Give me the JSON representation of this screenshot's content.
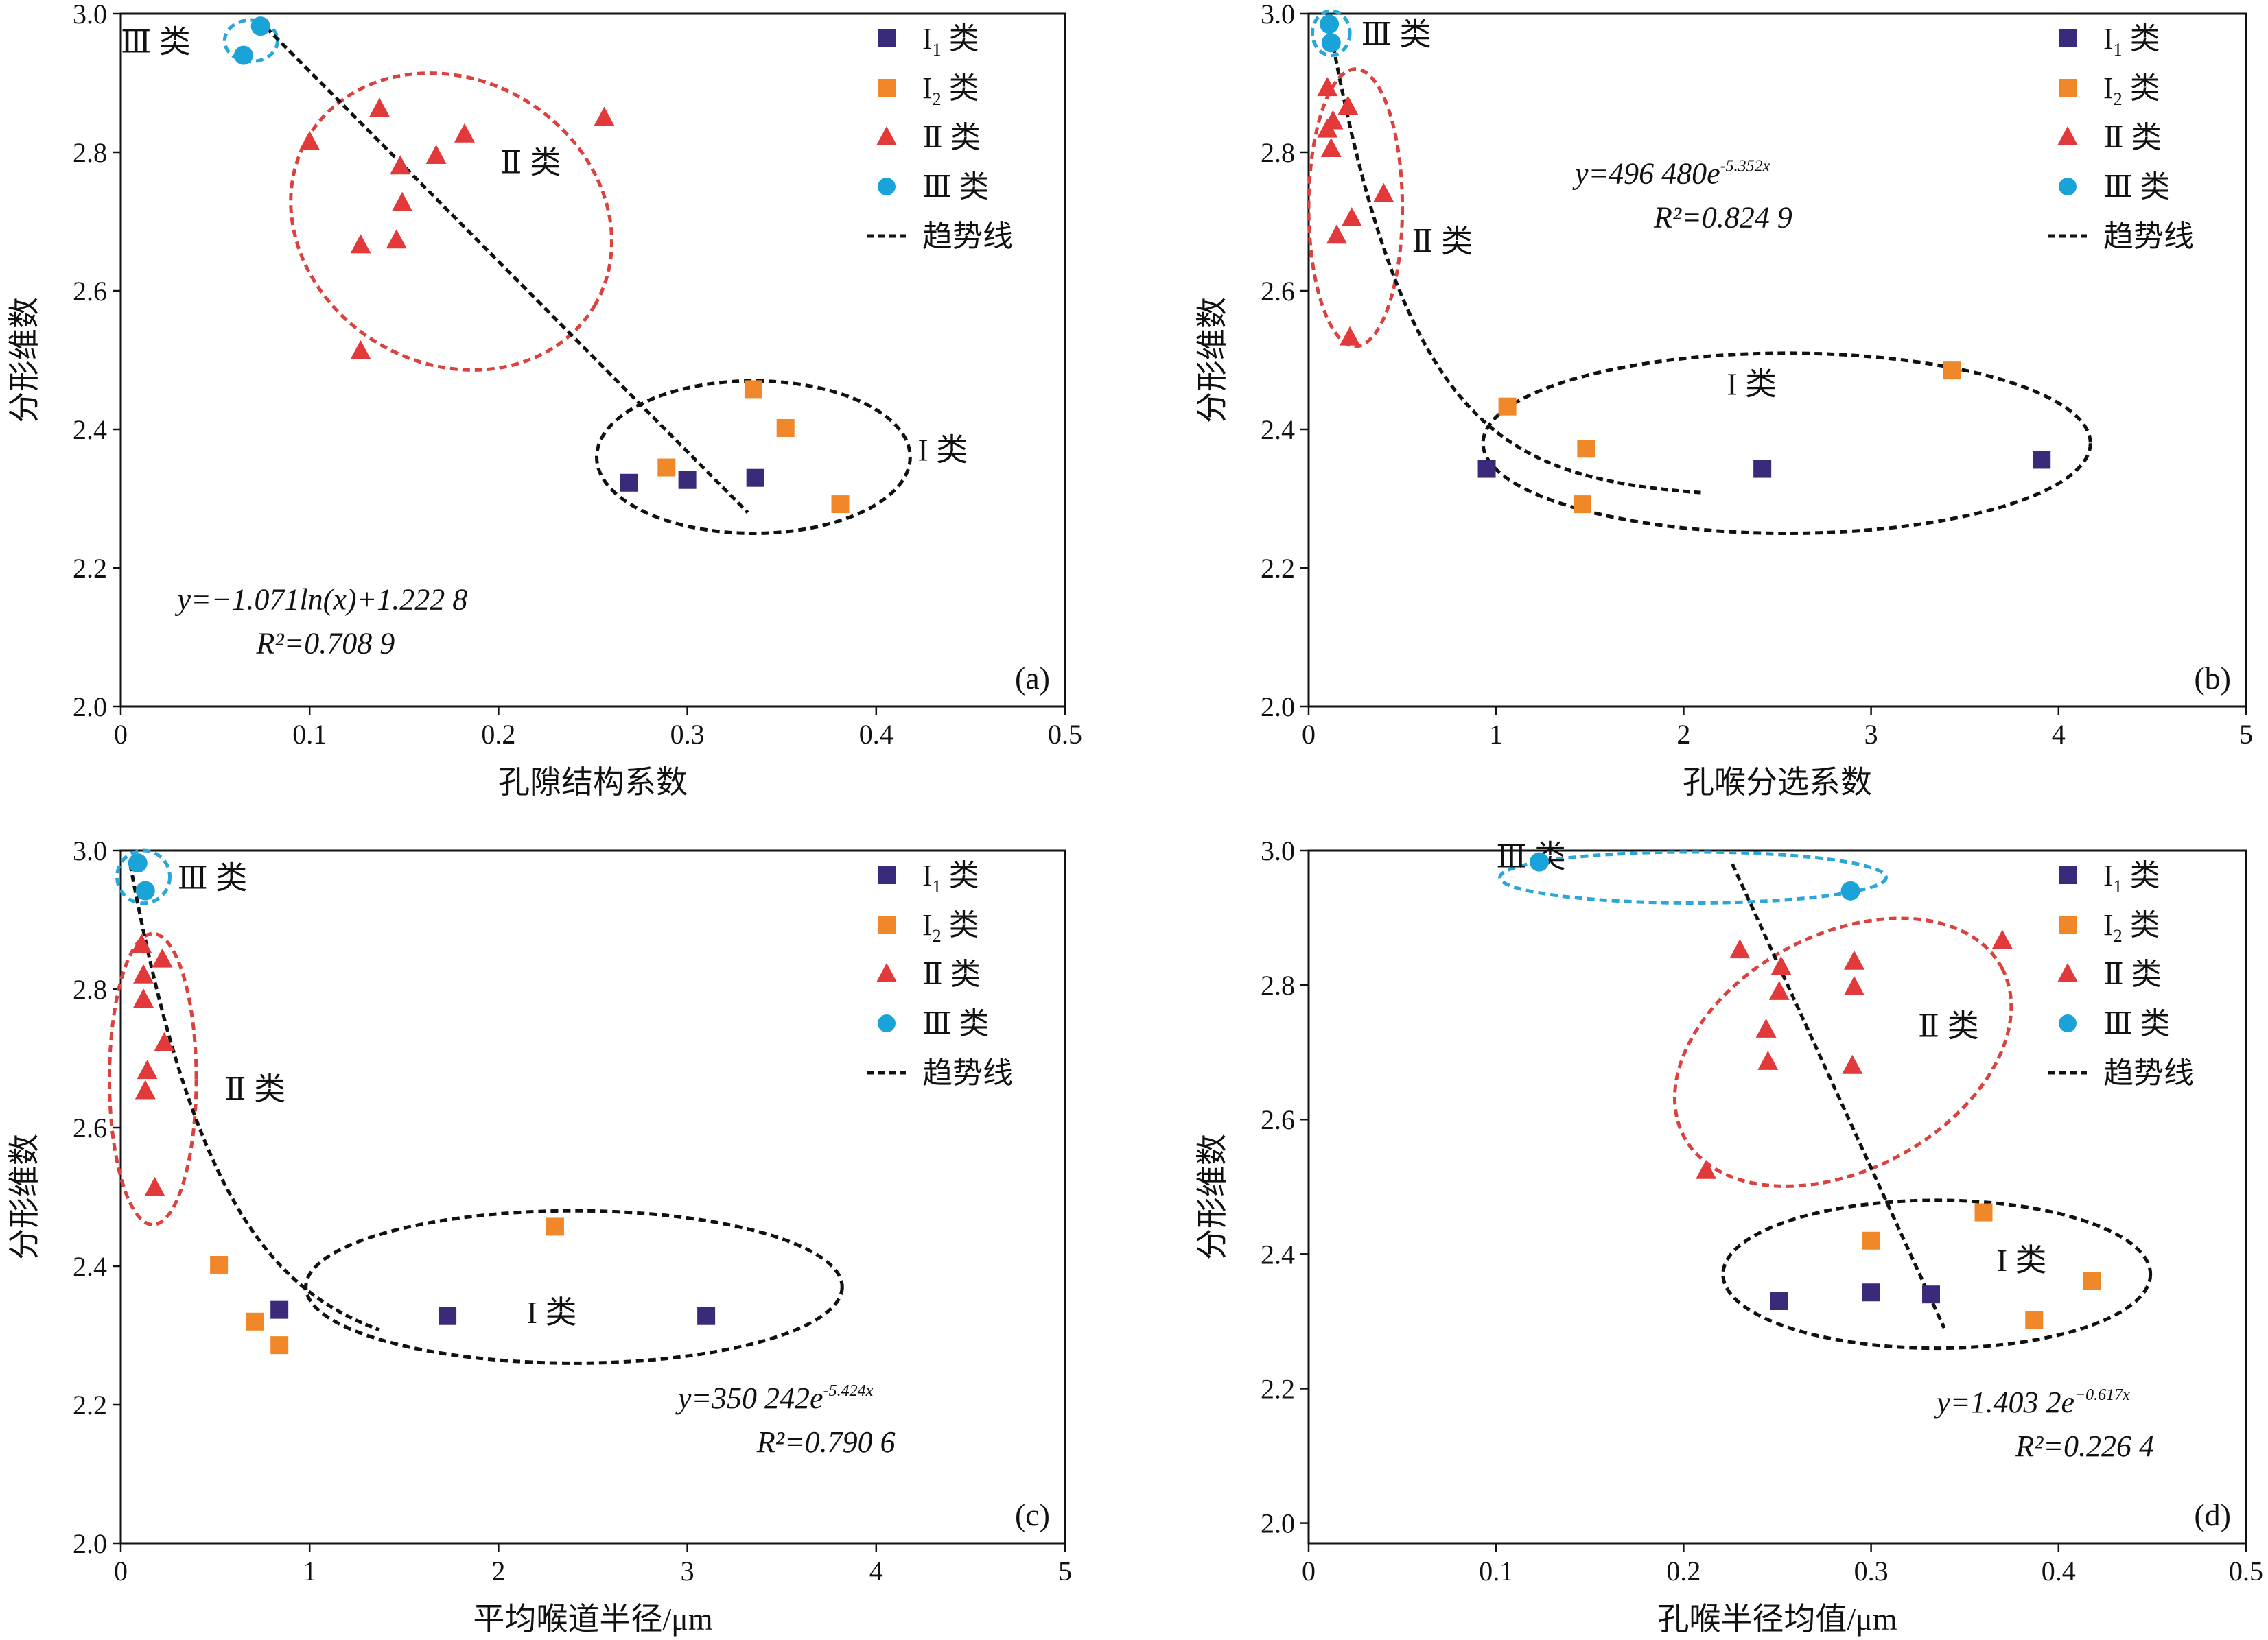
{
  "colors": {
    "I1": "#3b2a7a",
    "I2": "#f0882a",
    "II": "#e23a3a",
    "III": "#1aa3d8",
    "trend": "#111111",
    "loopII": "#d9423f",
    "loopIII": "#2aa6d8",
    "loopI": "#111111"
  },
  "legend": [
    {
      "key": "I1",
      "main": "I",
      "sub": "1",
      "suffix": " 类",
      "marker": "square"
    },
    {
      "key": "I2",
      "main": "I",
      "sub": "2",
      "suffix": " 类",
      "marker": "square"
    },
    {
      "key": "II",
      "main": "Ⅱ 类",
      "sub": "",
      "suffix": "",
      "marker": "triangle"
    },
    {
      "key": "III",
      "main": "Ⅲ 类",
      "sub": "",
      "suffix": "",
      "marker": "circle"
    },
    {
      "key": "trend",
      "main": "趋势线",
      "sub": "",
      "suffix": "",
      "marker": "dash"
    }
  ],
  "y_axis_label": "分形维数",
  "chart_data": [
    {
      "type": "scatter",
      "panel": "(a)",
      "xlabel": "孔隙结构系数",
      "ylabel": "分形维数",
      "xlim": [
        0,
        0.5
      ],
      "ylim": [
        2.0,
        3.0
      ],
      "xticks": [
        "0",
        "0.1",
        "0.2",
        "0.3",
        "0.4",
        "0.5"
      ],
      "yticks": [
        "2.0",
        "2.2",
        "2.4",
        "2.6",
        "2.8",
        "3.0"
      ],
      "equation": "y=−1.071ln(x)+1.222 8",
      "r2": "R²=0.708 9",
      "group_labels": {
        "I": "I 类",
        "II": "Ⅱ 类",
        "III": "Ⅲ 类"
      },
      "series": [
        {
          "name": "I1",
          "points": [
            [
              0.269,
              2.323
            ],
            [
              0.3,
              2.327
            ],
            [
              0.336,
              2.33
            ]
          ]
        },
        {
          "name": "I2",
          "points": [
            [
              0.289,
              2.345
            ],
            [
              0.335,
              2.458
            ],
            [
              0.352,
              2.402
            ],
            [
              0.381,
              2.292
            ]
          ]
        },
        {
          "name": "II",
          "points": [
            [
              0.1,
              2.815
            ],
            [
              0.137,
              2.863
            ],
            [
              0.148,
              2.78
            ],
            [
              0.149,
              2.727
            ],
            [
              0.167,
              2.795
            ],
            [
              0.182,
              2.826
            ],
            [
              0.127,
              2.666
            ],
            [
              0.146,
              2.673
            ],
            [
              0.127,
              2.513
            ],
            [
              0.256,
              2.85
            ]
          ]
        },
        {
          "name": "III",
          "points": [
            [
              0.065,
              2.94
            ],
            [
              0.074,
              2.982
            ]
          ]
        }
      ],
      "trend": [
        [
          0.077,
          2.98
        ],
        [
          0.332,
          2.28
        ]
      ]
    },
    {
      "type": "scatter",
      "panel": "(b)",
      "xlabel": "孔喉分选系数",
      "ylabel": "分形维数",
      "xlim": [
        0,
        5
      ],
      "ylim": [
        2.0,
        3.0
      ],
      "xticks": [
        "0",
        "1",
        "2",
        "3",
        "4",
        "5"
      ],
      "yticks": [
        "2.0",
        "2.2",
        "2.4",
        "2.6",
        "2.8",
        "3.0"
      ],
      "equation": "y=496 480e",
      "equation_exp": "-5.352x",
      "r2": "R²=0.824 9",
      "group_labels": {
        "I": "I 类",
        "II": "Ⅱ 类",
        "III": "Ⅲ 类"
      },
      "series": [
        {
          "name": "I1",
          "points": [
            [
              0.95,
              2.343
            ],
            [
              2.42,
              2.343
            ],
            [
              3.91,
              2.356
            ]
          ]
        },
        {
          "name": "I2",
          "points": [
            [
              1.06,
              2.433
            ],
            [
              1.48,
              2.372
            ],
            [
              1.46,
              2.292
            ],
            [
              3.43,
              2.485
            ]
          ]
        },
        {
          "name": "II",
          "points": [
            [
              0.1,
              2.893
            ],
            [
              0.13,
              2.845
            ],
            [
              0.21,
              2.866
            ],
            [
              0.1,
              2.833
            ],
            [
              0.12,
              2.805
            ],
            [
              0.4,
              2.74
            ],
            [
              0.23,
              2.705
            ],
            [
              0.15,
              2.68
            ],
            [
              0.22,
              2.533
            ]
          ]
        },
        {
          "name": "III",
          "points": [
            [
              0.11,
              2.985
            ],
            [
              0.12,
              2.958
            ]
          ]
        }
      ],
      "trend_fn": {
        "kind": "exp_b",
        "x0": 0.1,
        "x1": 2.1
      }
    },
    {
      "type": "scatter",
      "panel": "(c)",
      "xlabel": "平均喉道半径/μm",
      "ylabel": "分形维数",
      "xlim": [
        0,
        5
      ],
      "ylim": [
        2.0,
        3.0
      ],
      "xticks": [
        "0",
        "1",
        "2",
        "3",
        "4",
        "5"
      ],
      "yticks": [
        "2.0",
        "2.2",
        "2.4",
        "2.6",
        "2.8",
        "3.0"
      ],
      "equation": "y=350 242e",
      "equation_exp": "-5.424x",
      "r2": "R²=0.790 6",
      "group_labels": {
        "I": "I 类",
        "II": "Ⅱ 类",
        "III": "Ⅲ 类"
      },
      "series": [
        {
          "name": "I1",
          "points": [
            [
              0.84,
              2.337
            ],
            [
              1.73,
              2.328
            ],
            [
              3.1,
              2.328
            ]
          ]
        },
        {
          "name": "I2",
          "points": [
            [
              0.52,
              2.402
            ],
            [
              0.71,
              2.32
            ],
            [
              0.84,
              2.286
            ],
            [
              2.3,
              2.457
            ]
          ]
        },
        {
          "name": "II",
          "points": [
            [
              0.11,
              2.864
            ],
            [
              0.22,
              2.843
            ],
            [
              0.12,
              2.82
            ],
            [
              0.12,
              2.785
            ],
            [
              0.23,
              2.722
            ],
            [
              0.14,
              2.682
            ],
            [
              0.13,
              2.653
            ],
            [
              0.18,
              2.513
            ]
          ]
        },
        {
          "name": "III",
          "points": [
            [
              0.09,
              2.982
            ],
            [
              0.13,
              2.942
            ]
          ]
        }
      ],
      "trend_fn": {
        "kind": "exp_c",
        "x0": 0.05,
        "x1": 1.37
      }
    },
    {
      "type": "scatter",
      "panel": "(d)",
      "xlabel": "孔喉半径均值/μm",
      "ylabel": "分形维数",
      "xlim": [
        0,
        0.5
      ],
      "ylim": [
        1.97,
        3.0
      ],
      "xticks": [
        "0",
        "0.1",
        "0.2",
        "0.3",
        "0.4",
        "0.5"
      ],
      "yticks": [
        "2.0",
        "2.2",
        "2.4",
        "2.6",
        "2.8",
        "3.0"
      ],
      "equation": "y=1.403 2e",
      "equation_exp": "−0.617x",
      "r2": "R²=0.226 4",
      "group_labels": {
        "I": "I 类",
        "II": "Ⅱ 类",
        "III": "Ⅲ 类"
      },
      "series": [
        {
          "name": "I1",
          "points": [
            [
              0.251,
              2.33
            ],
            [
              0.3,
              2.343
            ],
            [
              0.332,
              2.34
            ]
          ]
        },
        {
          "name": "I2",
          "points": [
            [
              0.3,
              2.42
            ],
            [
              0.36,
              2.462
            ],
            [
              0.387,
              2.302
            ],
            [
              0.418,
              2.36
            ]
          ]
        },
        {
          "name": "II",
          "points": [
            [
              0.23,
              2.852
            ],
            [
              0.252,
              2.827
            ],
            [
              0.251,
              2.79
            ],
            [
              0.291,
              2.835
            ],
            [
              0.291,
              2.797
            ],
            [
              0.37,
              2.866
            ],
            [
              0.244,
              2.734
            ],
            [
              0.245,
              2.686
            ],
            [
              0.29,
              2.68
            ],
            [
              0.212,
              2.524
            ]
          ]
        },
        {
          "name": "III",
          "points": [
            [
              0.123,
              2.983
            ],
            [
              0.289,
              2.94
            ]
          ]
        }
      ],
      "trend": [
        [
          0.226,
          2.98
        ],
        [
          0.339,
          2.29
        ]
      ]
    }
  ]
}
